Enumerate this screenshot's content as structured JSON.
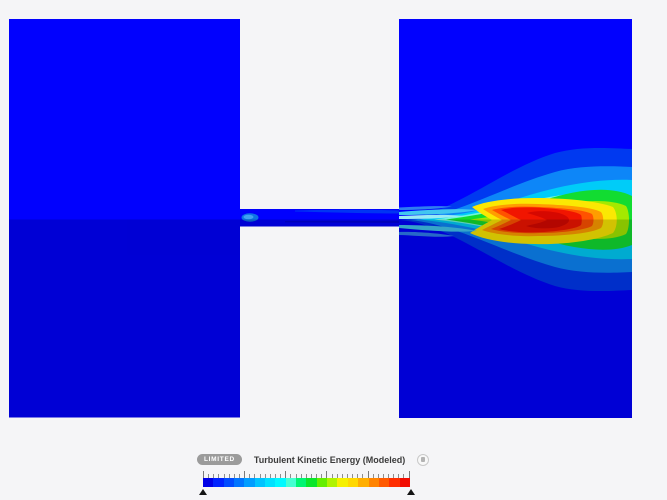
{
  "scene": {
    "background": "#f5f5f7",
    "block_color": "#0101fe",
    "seam_shade_color": "#000000",
    "bands": {
      "halo": "#0039f0",
      "light_blue": "#0d86f8",
      "cyan": "#00ccf8",
      "pale_cyan": "#6ff5de",
      "green": "#12dc31",
      "yellow_green": "#a4e900",
      "yellow": "#fbe803",
      "orange": "#ff9d00",
      "orange_red": "#ff5200",
      "red": "#f11500",
      "core_red": "#d60800",
      "wisp_cyan": "#41c6f0",
      "wisp_pale": "#9aeaf4",
      "wisp_blue": "#2f7df0",
      "inlet_blob": "#0d74e6",
      "inlet_blob_inner": "#3fa2f2",
      "channel_streak": "#0034f4",
      "channel_dark_streak": "#0000c2"
    }
  },
  "legend": {
    "badge": "LIMITED",
    "badge_color": "#9b9b9b",
    "title": "Turbulent Kinetic Energy (Modeled)",
    "icons": {
      "status": "lock-icon"
    },
    "colorbar_colors": [
      "#0000e6",
      "#0023ff",
      "#004cff",
      "#0075ff",
      "#009dff",
      "#00c3ff",
      "#00e1ff",
      "#00f9ff",
      "#45ffd2",
      "#00f573",
      "#0ae62b",
      "#64ee00",
      "#aff300",
      "#f5f000",
      "#ffd800",
      "#ffae00",
      "#ff8300",
      "#ff5900",
      "#ff2e00",
      "#f20c00"
    ],
    "ticks": {
      "count": 41,
      "major_every": 8
    }
  }
}
